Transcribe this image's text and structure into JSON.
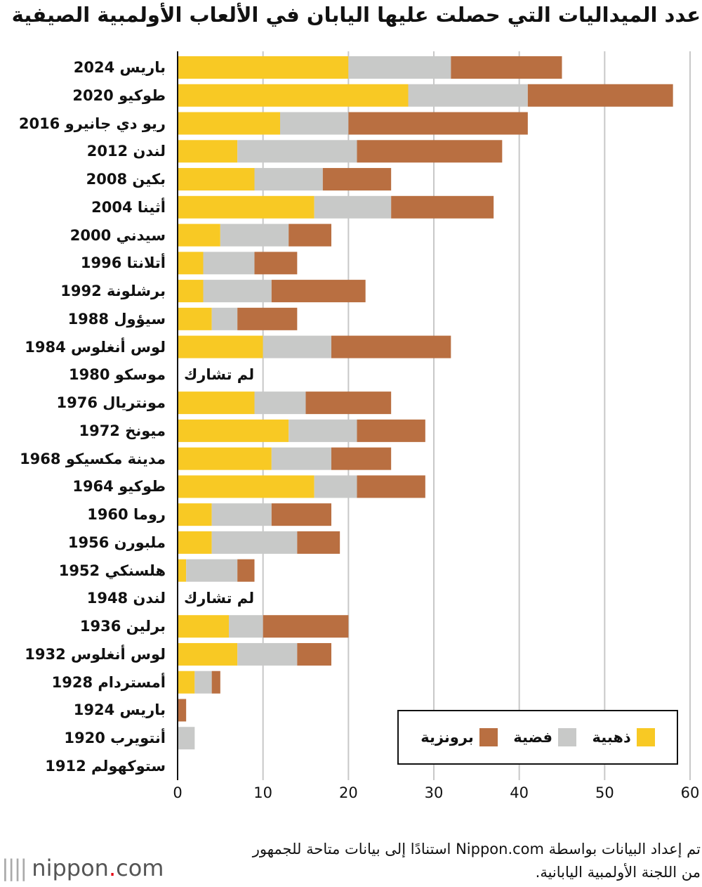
{
  "title": "عدد الميداليات التي حصلت عليها اليابان في الألعاب الأولمبية الصيفية",
  "note_line1": "تم إعداد البيانات  بواسطة Nippon.com استنادًا إلى بيانات متاحة للجمهور",
  "note_line2": "من اللجنة الأولمبية اليابانية.",
  "logo": {
    "name": "nippon",
    "dot": ".",
    "suffix": "com"
  },
  "chart_data": {
    "type": "bar",
    "orientation": "horizontal",
    "stacked": true,
    "title": "عدد الميداليات التي حصلت عليها اليابان في الألعاب الأولمبية الصيفية",
    "xlim": [
      0,
      60
    ],
    "xticks": [
      0,
      10,
      20,
      30,
      40,
      50,
      60
    ],
    "grid": true,
    "legend_position": "bottom-right",
    "not_participated_label": "لم تشارك",
    "categories": [
      "باريس 2024",
      "طوكيو 2020",
      "ريو دي جانيرو  2016",
      "لندن  2012",
      "بكين  2008",
      "أثينا  2004",
      "سيدني 2000",
      "أتلانتا 1996",
      "برشلونة 1992",
      "سيؤول  1988",
      "لوس أنغلوس 1984",
      "موسكو 1980",
      "مونتريال 1976",
      "ميونخ 1972",
      "مدينة مكسيكو 1968",
      "طوكيو  1964",
      "روما  1960",
      "ملبورن 1956",
      "هلسنكي 1952",
      "لندن 1948",
      "برلين 1936",
      "لوس أنغلوس 1932",
      "أمستردام 1928",
      "باريس 1924",
      "أنتويرب 1920",
      "ستوكهولم 1912"
    ],
    "not_participated": [
      false,
      false,
      false,
      false,
      false,
      false,
      false,
      false,
      false,
      false,
      false,
      true,
      false,
      false,
      false,
      false,
      false,
      false,
      false,
      true,
      false,
      false,
      false,
      false,
      false,
      false
    ],
    "series": [
      {
        "name": "ذهبية",
        "color": "#f8c924",
        "values": [
          20,
          27,
          12,
          7,
          9,
          16,
          5,
          3,
          3,
          4,
          10,
          0,
          9,
          13,
          11,
          16,
          4,
          4,
          1,
          0,
          6,
          7,
          2,
          0,
          0,
          0
        ]
      },
      {
        "name": "فضية",
        "color": "#c8c9c8",
        "values": [
          12,
          14,
          8,
          14,
          8,
          9,
          8,
          6,
          8,
          3,
          8,
          0,
          6,
          8,
          7,
          5,
          7,
          10,
          6,
          0,
          4,
          7,
          2,
          0,
          2,
          0
        ]
      },
      {
        "name": "برونزية",
        "color": "#b96f41",
        "values": [
          13,
          17,
          21,
          17,
          8,
          12,
          5,
          5,
          11,
          7,
          14,
          0,
          10,
          8,
          7,
          8,
          7,
          5,
          2,
          0,
          10,
          4,
          1,
          1,
          0,
          0
        ]
      }
    ]
  }
}
